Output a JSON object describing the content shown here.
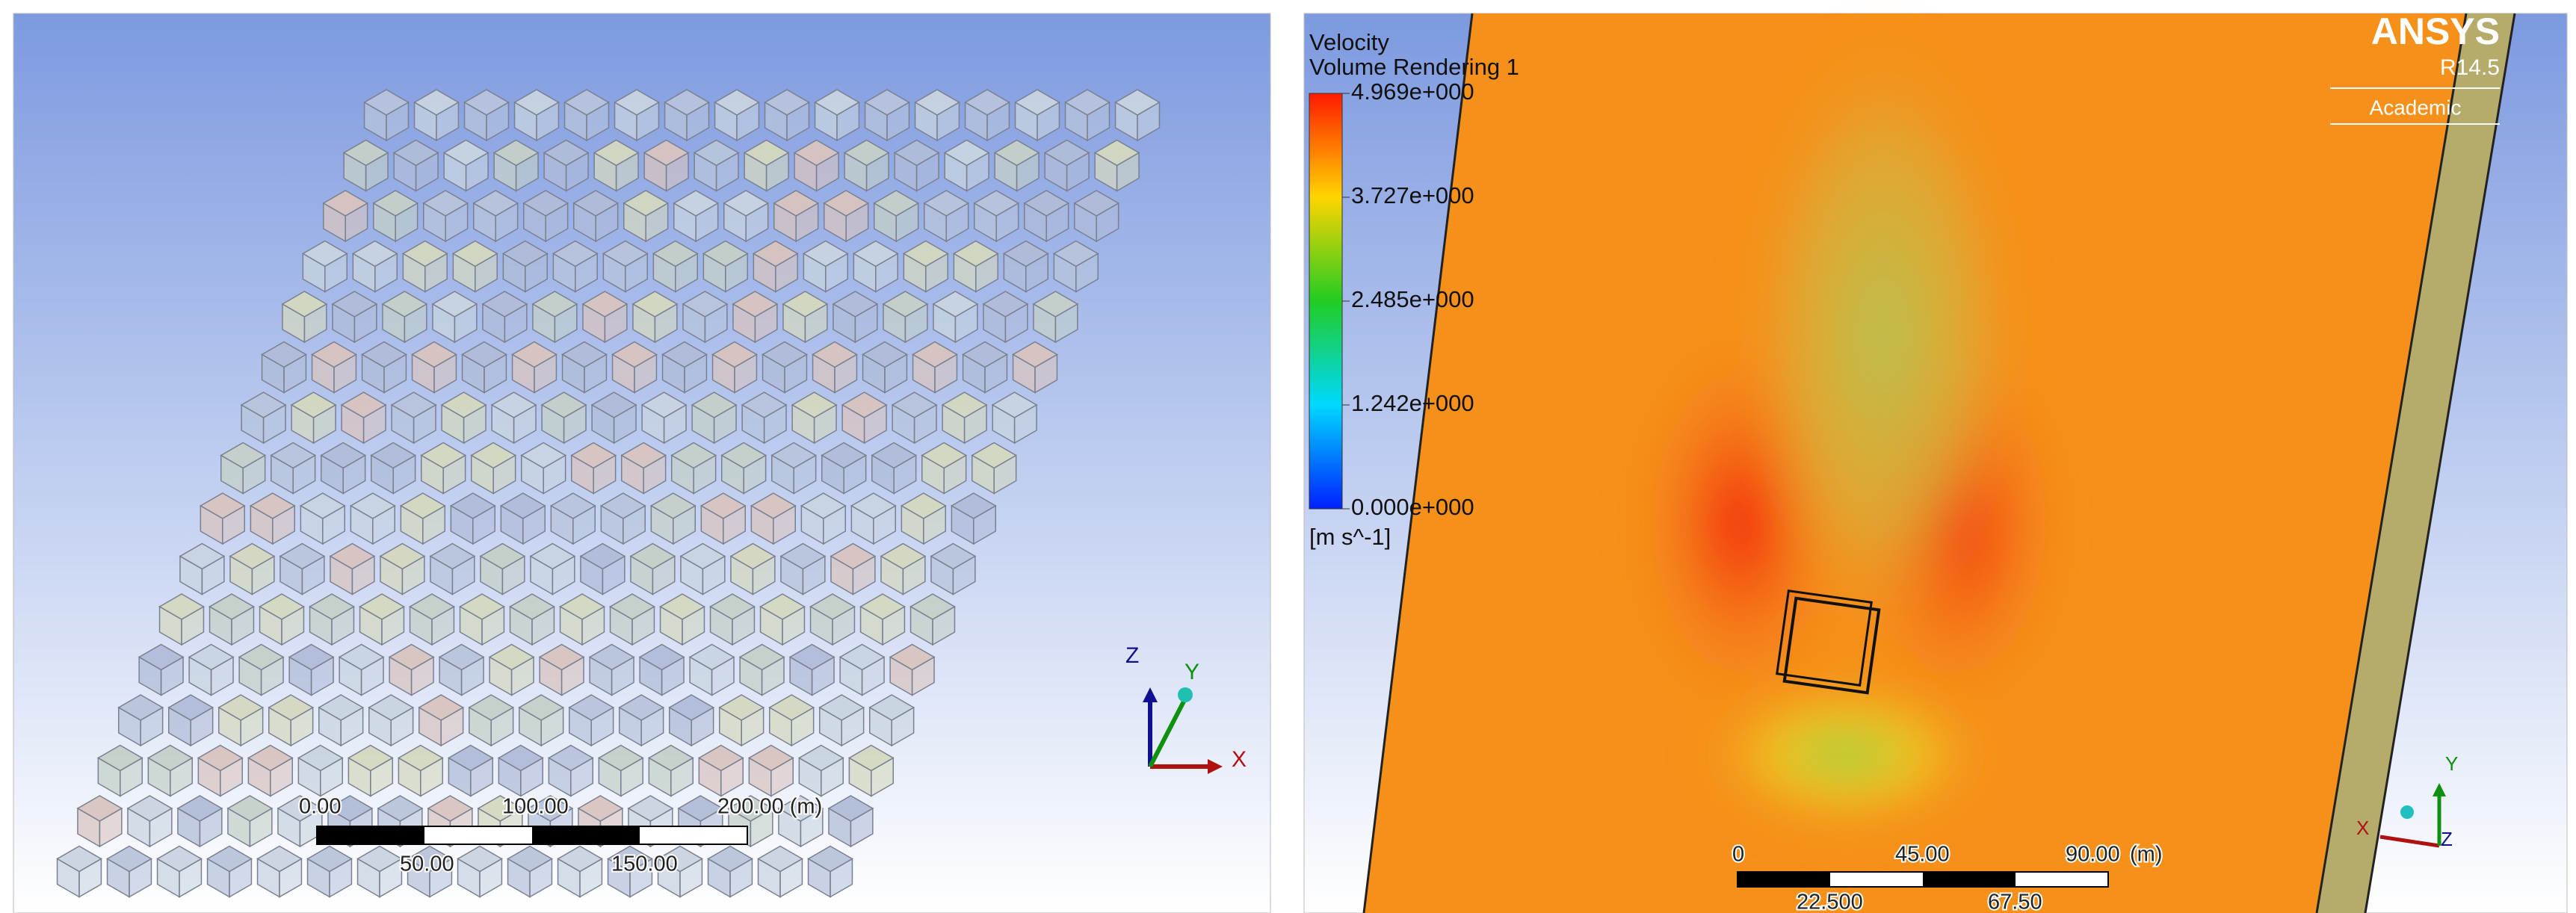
{
  "left_view": {
    "scale_bar": {
      "top_labels": [
        "0.00",
        "100.00",
        "200.00 (m)"
      ],
      "bottom_labels": [
        "50.00",
        "150.00"
      ]
    },
    "axes": {
      "z": "Z",
      "y": "Y",
      "x": "X"
    }
  },
  "right_view": {
    "title": "Velocity",
    "subtitle": "Volume Rendering 1",
    "legend": {
      "labels": [
        "4.969e+000",
        "3.727e+000",
        "2.485e+000",
        "1.242e+000",
        "0.000e+000"
      ],
      "unit": "[m s^-1]"
    },
    "logo": {
      "name": "ANSYS",
      "version": "R14.5",
      "license": "Academic"
    },
    "scale_bar": {
      "top_labels": [
        "0",
        "45.00",
        "90.00"
      ],
      "unit": "(m)",
      "bottom_labels": [
        "22.500",
        "67.50"
      ]
    },
    "axes": {
      "x": "X",
      "y": "Y",
      "z": "Z"
    }
  }
}
